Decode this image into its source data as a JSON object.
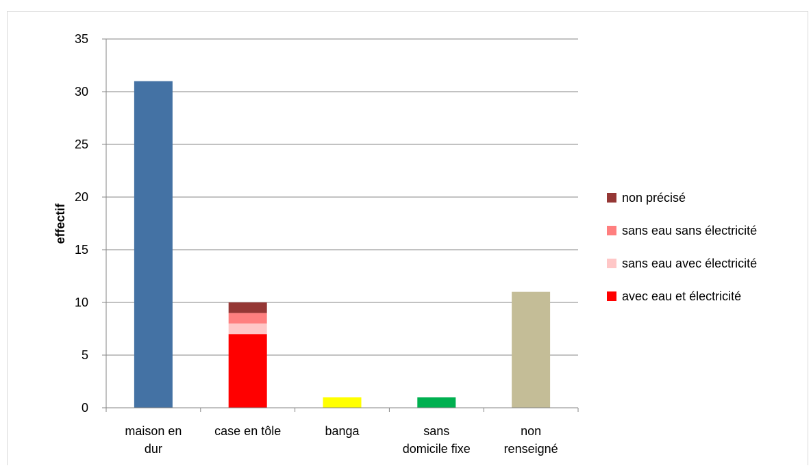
{
  "chart_data": {
    "type": "bar",
    "stacked": true,
    "title": "",
    "xlabel": "",
    "ylabel": "effectif",
    "ylim": [
      0,
      35
    ],
    "yticks": [
      0,
      5,
      10,
      15,
      20,
      25,
      30,
      35
    ],
    "grid": true,
    "legend_position": "right",
    "categories": [
      [
        "maison en",
        "dur"
      ],
      [
        "case en tôle"
      ],
      [
        "banga"
      ],
      [
        "sans",
        "domicile fixe"
      ],
      [
        "non",
        "renseigné"
      ]
    ],
    "bars": [
      {
        "category_index": 0,
        "segments": [
          {
            "value": 31,
            "color": "#4472a4"
          }
        ]
      },
      {
        "category_index": 1,
        "segments": [
          {
            "series": "avec eau et électricité",
            "value": 7,
            "color": "#ff0000"
          },
          {
            "series": "sans eau avec électricité",
            "value": 1,
            "color": "#ffc7c7"
          },
          {
            "series": "sans eau sans électricité",
            "value": 1,
            "color": "#ff7f7f"
          },
          {
            "series": "non précisé",
            "value": 1,
            "color": "#953735"
          }
        ]
      },
      {
        "category_index": 2,
        "segments": [
          {
            "value": 1,
            "color": "#ffff00"
          }
        ]
      },
      {
        "category_index": 3,
        "segments": [
          {
            "value": 1,
            "color": "#00b050"
          }
        ]
      },
      {
        "category_index": 4,
        "segments": [
          {
            "value": 11,
            "color": "#c4bd97"
          }
        ]
      }
    ],
    "legend": [
      {
        "label": "non précisé",
        "color": "#953735"
      },
      {
        "label": "sans eau sans électricité",
        "color": "#ff7f7f"
      },
      {
        "label": "sans eau avec électricité",
        "color": "#ffc7c7"
      },
      {
        "label": "avec eau et électricité",
        "color": "#ff0000"
      }
    ]
  }
}
